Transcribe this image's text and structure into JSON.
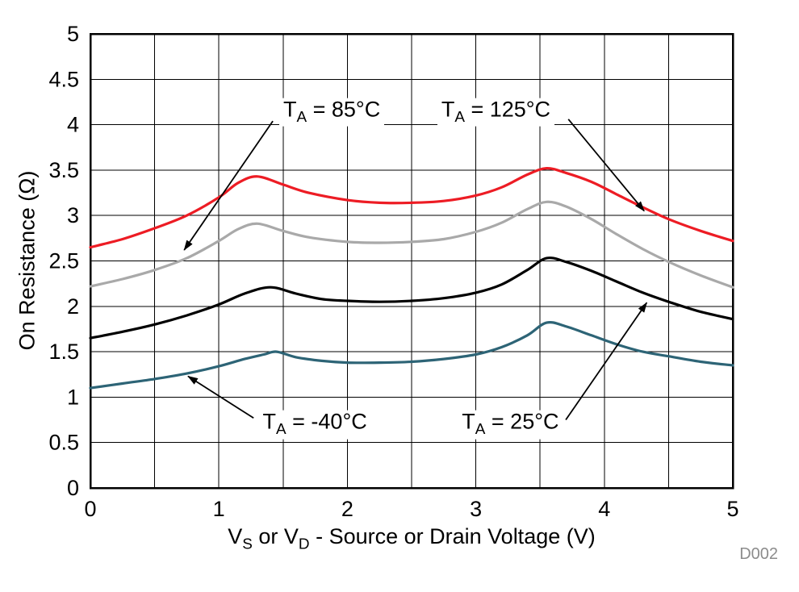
{
  "chart_data": {
    "type": "line",
    "title": "",
    "xlabel": "VS or VD - Source or Drain Voltage (V)",
    "xlabel_parts": {
      "p0": "V",
      "s0": "S",
      "p1": " or V",
      "s1": "D",
      "p2": " - Source or Drain Voltage (V)"
    },
    "ylabel": "On Resistance (Ω)",
    "figure_label": "D002",
    "xlim": [
      0,
      5
    ],
    "ylim": [
      0,
      5
    ],
    "x_ticks": [
      "0",
      "1",
      "2",
      "3",
      "4",
      "5"
    ],
    "y_ticks": [
      "0",
      "0.5",
      "1",
      "1.5",
      "2",
      "2.5",
      "3",
      "3.5",
      "4",
      "4.5",
      "5"
    ],
    "grid": true,
    "grid_step": 0.5,
    "legend_position": "inline-annotations",
    "series": [
      {
        "id": "ta-minus40",
        "name": "TA = -40°C",
        "color": "#2d6476",
        "x": [
          0,
          0.25,
          0.5,
          0.75,
          1.0,
          1.2,
          1.35,
          1.45,
          1.6,
          1.8,
          2.0,
          2.25,
          2.5,
          2.75,
          3.0,
          3.2,
          3.4,
          3.55,
          3.7,
          3.9,
          4.1,
          4.3,
          4.5,
          4.75,
          5.0
        ],
        "y": [
          1.1,
          1.15,
          1.2,
          1.26,
          1.34,
          1.42,
          1.47,
          1.5,
          1.44,
          1.4,
          1.38,
          1.38,
          1.39,
          1.42,
          1.47,
          1.55,
          1.68,
          1.82,
          1.78,
          1.68,
          1.58,
          1.5,
          1.45,
          1.39,
          1.35
        ]
      },
      {
        "id": "ta-25",
        "name": "TA = 25°C",
        "color": "#000000",
        "x": [
          0,
          0.25,
          0.5,
          0.75,
          1.0,
          1.2,
          1.4,
          1.6,
          1.8,
          2.0,
          2.25,
          2.5,
          2.75,
          3.0,
          3.2,
          3.4,
          3.55,
          3.7,
          3.9,
          4.1,
          4.3,
          4.5,
          4.75,
          5.0
        ],
        "y": [
          1.65,
          1.72,
          1.8,
          1.9,
          2.02,
          2.14,
          2.21,
          2.14,
          2.08,
          2.06,
          2.05,
          2.06,
          2.09,
          2.15,
          2.24,
          2.4,
          2.53,
          2.49,
          2.39,
          2.27,
          2.15,
          2.05,
          1.94,
          1.86
        ]
      },
      {
        "id": "ta-85",
        "name": "TA = 85°C",
        "color": "#a9a9a9",
        "x": [
          0,
          0.25,
          0.5,
          0.75,
          1.0,
          1.15,
          1.3,
          1.5,
          1.7,
          2.0,
          2.25,
          2.5,
          2.75,
          3.0,
          3.2,
          3.4,
          3.55,
          3.7,
          3.9,
          4.1,
          4.3,
          4.5,
          4.75,
          5.0
        ],
        "y": [
          2.22,
          2.3,
          2.4,
          2.53,
          2.72,
          2.85,
          2.91,
          2.83,
          2.76,
          2.71,
          2.7,
          2.71,
          2.74,
          2.82,
          2.92,
          3.07,
          3.15,
          3.1,
          2.96,
          2.79,
          2.63,
          2.49,
          2.34,
          2.21
        ]
      },
      {
        "id": "ta-125",
        "name": "TA = 125°C",
        "color": "#ed1c24",
        "x": [
          0,
          0.25,
          0.5,
          0.75,
          1.0,
          1.15,
          1.3,
          1.5,
          1.7,
          2.0,
          2.25,
          2.5,
          2.75,
          3.0,
          3.2,
          3.4,
          3.55,
          3.7,
          3.9,
          4.1,
          4.3,
          4.5,
          4.75,
          5.0
        ],
        "y": [
          2.65,
          2.74,
          2.86,
          3.0,
          3.2,
          3.36,
          3.43,
          3.34,
          3.25,
          3.17,
          3.14,
          3.14,
          3.16,
          3.22,
          3.31,
          3.45,
          3.52,
          3.47,
          3.37,
          3.23,
          3.09,
          2.96,
          2.83,
          2.72
        ]
      }
    ],
    "annotations": [
      {
        "id": "ta-85",
        "prefix": "T",
        "sub": "A",
        "suffix": " = 85°C",
        "label_pos": [
          1.47,
          4.12
        ],
        "line_from": [
          1.42,
          4.04
        ],
        "line_to": [
          0.73,
          2.62
        ]
      },
      {
        "id": "ta-125",
        "prefix": "T",
        "sub": "A",
        "suffix": " = 125°C",
        "label_pos": [
          2.7,
          4.12
        ],
        "line_from": [
          3.72,
          4.06
        ],
        "line_to": [
          4.31,
          3.05
        ]
      },
      {
        "id": "ta-minus40",
        "prefix": "T",
        "sub": "A",
        "suffix": " = -40°C",
        "label_pos": [
          1.31,
          0.68
        ],
        "line_from": [
          1.27,
          0.77
        ],
        "line_to": [
          0.76,
          1.23
        ]
      },
      {
        "id": "ta-25",
        "prefix": "T",
        "sub": "A",
        "suffix": " = 25°C",
        "label_pos": [
          2.86,
          0.68
        ],
        "line_from": [
          3.7,
          0.75
        ],
        "line_to": [
          4.33,
          2.04
        ]
      }
    ]
  }
}
